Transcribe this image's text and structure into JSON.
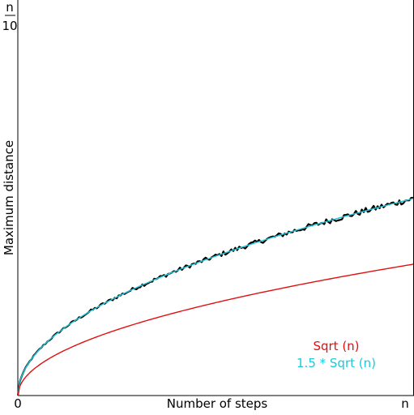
{
  "chart_data": {
    "type": "line",
    "xlabel": "Number of steps",
    "ylabel": "Maximum distance",
    "x_tick_labels": [
      "0",
      "n"
    ],
    "y_tick_label": {
      "numerator": "n",
      "denominator": "10"
    },
    "xlim": [
      0,
      1
    ],
    "ylim": [
      0,
      1
    ],
    "grid": false,
    "legend_position": "bottom-right",
    "samples": 200,
    "noise_amplitude": 0.008,
    "series": [
      {
        "name": "",
        "kind": "simulated",
        "color": "#000000",
        "coefficient": 0.498
      },
      {
        "name": "1.5 * Sqrt (n)",
        "kind": "curve",
        "color": "#1ec8d8",
        "coefficient": 0.498
      },
      {
        "name": "Sqrt (n)",
        "kind": "curve",
        "color": "#e01010",
        "coefficient": 0.332
      }
    ],
    "legend": [
      {
        "label": "Sqrt (n)",
        "color": "#e01010"
      },
      {
        "label": "1.5 * Sqrt (n)",
        "color": "#1ec8d8"
      }
    ]
  }
}
